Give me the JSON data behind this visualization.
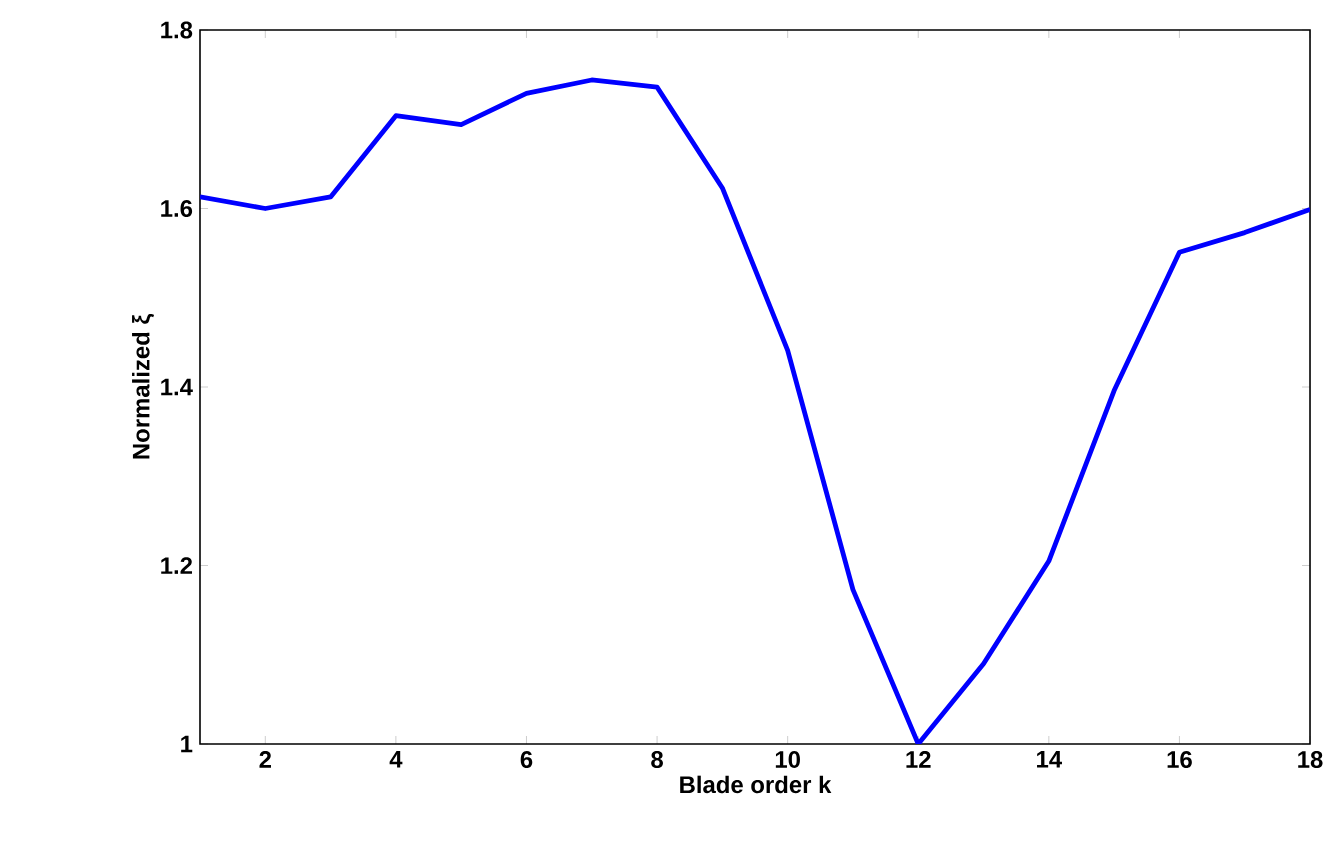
{
  "chart_data": {
    "type": "line",
    "xlabel": "Blade order k",
    "ylabel": "Normalized ξ",
    "x": [
      1,
      2,
      3,
      4,
      5,
      6,
      7,
      8,
      9,
      10,
      11,
      12,
      13,
      14,
      15,
      16,
      17,
      18
    ],
    "series": [
      {
        "color": "#0000ff",
        "values": [
          1.613,
          1.6,
          1.613,
          1.704,
          1.694,
          1.729,
          1.744,
          1.736,
          1.623,
          1.441,
          1.173,
          1.0,
          1.09,
          1.205,
          1.396,
          1.551,
          1.573,
          1.599
        ]
      }
    ],
    "xlim": [
      1,
      18
    ],
    "ylim": [
      1,
      1.8
    ],
    "xticks": [
      2,
      4,
      6,
      8,
      10,
      12,
      14,
      16,
      18
    ],
    "yticks": [
      1,
      1.2,
      1.4,
      1.6,
      1.8
    ],
    "grid": false,
    "marker": "none",
    "line_style": "solid"
  }
}
